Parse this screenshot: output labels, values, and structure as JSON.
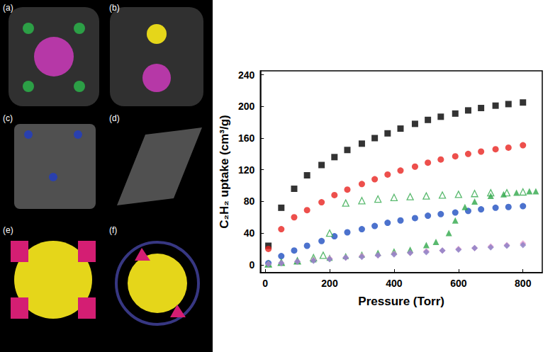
{
  "figure_panels": [
    "(a)",
    "(b)",
    "(c)",
    "(d)",
    "(e)",
    "(f)"
  ],
  "chart_data": {
    "type": "scatter",
    "x_label": "Pressure (Torr)",
    "y_label": "C₂H₂ uptake (cm³/g)",
    "xlim": [
      -15,
      860
    ],
    "xticks": [
      0,
      200,
      400,
      600,
      800
    ],
    "ylim": [
      -10,
      245
    ],
    "yticks": [
      0,
      40,
      80,
      120,
      160,
      200,
      240
    ],
    "grid": false,
    "series": [
      {
        "color": "#000000",
        "marker": "square",
        "values": [
          [
            10,
            24
          ],
          [
            50,
            72
          ],
          [
            90,
            96
          ],
          [
            130,
            113
          ],
          [
            175,
            126
          ],
          [
            215,
            136
          ],
          [
            255,
            145
          ],
          [
            300,
            153
          ],
          [
            340,
            160
          ],
          [
            380,
            166
          ],
          [
            420,
            172
          ],
          [
            465,
            178
          ],
          [
            505,
            183
          ],
          [
            545,
            187
          ],
          [
            590,
            191
          ],
          [
            630,
            195
          ],
          [
            670,
            198
          ],
          [
            715,
            201
          ],
          [
            755,
            203
          ],
          [
            800,
            205
          ]
        ]
      },
      {
        "color": "#e8231f",
        "marker": "circle",
        "values": [
          [
            10,
            20
          ],
          [
            50,
            45
          ],
          [
            90,
            60
          ],
          [
            130,
            69
          ],
          [
            175,
            79
          ],
          [
            215,
            88
          ],
          [
            255,
            95
          ],
          [
            300,
            102
          ],
          [
            340,
            108
          ],
          [
            380,
            114
          ],
          [
            420,
            119
          ],
          [
            465,
            124
          ],
          [
            505,
            129
          ],
          [
            545,
            133
          ],
          [
            590,
            137
          ],
          [
            630,
            140
          ],
          [
            670,
            143
          ],
          [
            715,
            146
          ],
          [
            755,
            148
          ],
          [
            800,
            151
          ]
        ]
      },
      {
        "color": "#1f4fc0",
        "marker": "circle",
        "values": [
          [
            10,
            2
          ],
          [
            50,
            11
          ],
          [
            90,
            18
          ],
          [
            130,
            24
          ],
          [
            175,
            30
          ],
          [
            215,
            36
          ],
          [
            255,
            41
          ],
          [
            300,
            45
          ],
          [
            340,
            49
          ],
          [
            380,
            53
          ],
          [
            420,
            56
          ],
          [
            465,
            59
          ],
          [
            505,
            62
          ],
          [
            545,
            64
          ],
          [
            590,
            66
          ],
          [
            630,
            68
          ],
          [
            670,
            70
          ],
          [
            715,
            72
          ],
          [
            755,
            73
          ],
          [
            800,
            74
          ]
        ]
      },
      {
        "color": "#2fa84a",
        "marker": "open_triangle",
        "values": [
          [
            10,
            1
          ],
          [
            50,
            3
          ],
          [
            100,
            5
          ],
          [
            150,
            9
          ],
          [
            180,
            12
          ],
          [
            200,
            40
          ],
          [
            250,
            78
          ],
          [
            300,
            81
          ],
          [
            350,
            83
          ],
          [
            400,
            85
          ],
          [
            450,
            86
          ],
          [
            500,
            87
          ],
          [
            550,
            88
          ],
          [
            600,
            89
          ],
          [
            650,
            90
          ],
          [
            700,
            91
          ],
          [
            750,
            91
          ],
          [
            800,
            92
          ]
        ]
      },
      {
        "color": "#2fa84a",
        "marker": "triangle",
        "values": [
          [
            10,
            1
          ],
          [
            50,
            3
          ],
          [
            100,
            5
          ],
          [
            150,
            7
          ],
          [
            200,
            9
          ],
          [
            250,
            11
          ],
          [
            300,
            13
          ],
          [
            350,
            15
          ],
          [
            400,
            17
          ],
          [
            450,
            19
          ],
          [
            500,
            25
          ],
          [
            530,
            29
          ],
          [
            570,
            40
          ],
          [
            590,
            56
          ],
          [
            620,
            73
          ],
          [
            650,
            80
          ],
          [
            700,
            87
          ],
          [
            740,
            89
          ],
          [
            780,
            91
          ],
          [
            820,
            93
          ],
          [
            840,
            93
          ]
        ]
      },
      {
        "color": "#e49bd0",
        "marker": "diamond",
        "values": [
          [
            10,
            1
          ],
          [
            50,
            2
          ],
          [
            100,
            4
          ],
          [
            150,
            6
          ],
          [
            200,
            8
          ],
          [
            250,
            9
          ],
          [
            300,
            11
          ],
          [
            350,
            12
          ],
          [
            400,
            14
          ],
          [
            450,
            15
          ],
          [
            500,
            17
          ],
          [
            550,
            18
          ],
          [
            600,
            20
          ],
          [
            650,
            21
          ],
          [
            700,
            23
          ],
          [
            750,
            25
          ],
          [
            800,
            27
          ]
        ]
      },
      {
        "color": "#8a80c4",
        "marker": "diamond",
        "values": [
          [
            10,
            1
          ],
          [
            50,
            2
          ],
          [
            100,
            4
          ],
          [
            150,
            5
          ],
          [
            200,
            7
          ],
          [
            250,
            9
          ],
          [
            300,
            10
          ],
          [
            350,
            12
          ],
          [
            400,
            13
          ],
          [
            450,
            15
          ],
          [
            500,
            16
          ],
          [
            550,
            18
          ],
          [
            600,
            19
          ],
          [
            650,
            21
          ],
          [
            700,
            22
          ],
          [
            750,
            24
          ],
          [
            800,
            25
          ]
        ]
      }
    ]
  }
}
